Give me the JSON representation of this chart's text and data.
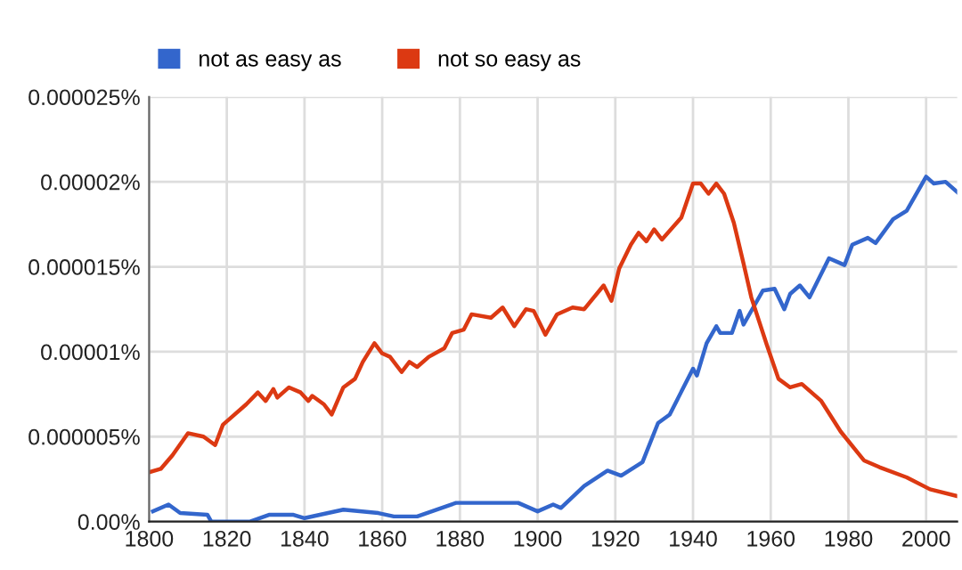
{
  "chart_data": {
    "type": "line",
    "series": [
      {
        "name": "not as easy as",
        "color": "#3366cc",
        "x": [
          1801,
          1805,
          1808,
          1815,
          1816,
          1826,
          1831,
          1837,
          1840,
          1850,
          1859,
          1863,
          1869,
          1879,
          1885,
          1891,
          1895,
          1900,
          1904,
          1906,
          1912,
          1918,
          1921.5,
          1927,
          1931,
          1934,
          1940,
          1941,
          1943.5,
          1946,
          1947,
          1950,
          1952,
          1953,
          1956,
          1958,
          1961,
          1963.5,
          1965,
          1967.5,
          1970,
          1975,
          1979,
          1981,
          1985,
          1987,
          1991.5,
          1995,
          1997,
          2000,
          2002,
          2005,
          2008
        ],
        "values": [
          6e-07,
          1e-06,
          5e-07,
          4e-07,
          0,
          0,
          4e-07,
          4e-07,
          2e-07,
          7e-07,
          5e-07,
          3e-07,
          3e-07,
          1.1e-06,
          1.1e-06,
          1.1e-06,
          1.1e-06,
          6e-07,
          1e-06,
          8e-07,
          2.1e-06,
          3e-06,
          2.7e-06,
          3.5e-06,
          5.8e-06,
          6.3e-06,
          9e-06,
          8.6e-06,
          1.05e-05,
          1.15e-05,
          1.11e-05,
          1.11e-05,
          1.24e-05,
          1.16e-05,
          1.28e-05,
          1.36e-05,
          1.37e-05,
          1.25e-05,
          1.34e-05,
          1.39e-05,
          1.32e-05,
          1.55e-05,
          1.51e-05,
          1.63e-05,
          1.67e-05,
          1.64e-05,
          1.78e-05,
          1.83e-05,
          1.91e-05,
          2.03e-05,
          1.99e-05,
          2e-05,
          1.94e-05
        ]
      },
      {
        "name": "not so easy as",
        "color": "#dc3912",
        "x": [
          1800,
          1803,
          1806,
          1810,
          1814,
          1817,
          1819,
          1825,
          1828,
          1830,
          1832,
          1833,
          1836,
          1839,
          1841,
          1842,
          1845,
          1847,
          1850,
          1853,
          1855,
          1858,
          1860,
          1862,
          1865,
          1867,
          1869,
          1872,
          1876,
          1878,
          1881,
          1883,
          1888,
          1891,
          1894,
          1897,
          1899,
          1902,
          1905,
          1909,
          1912,
          1917,
          1919,
          1921,
          1924,
          1926,
          1928,
          1930,
          1932,
          1937,
          1940,
          1942,
          1944,
          1946,
          1948,
          1950.5,
          1953,
          1955,
          1959,
          1962,
          1965,
          1968,
          1973,
          1978,
          1984,
          1988,
          1995,
          2001,
          2008
        ],
        "values": [
          2.9e-06,
          3.1e-06,
          3.9e-06,
          5.2e-06,
          5e-06,
          4.5e-06,
          5.7e-06,
          6.9e-06,
          7.6e-06,
          7.1e-06,
          7.8e-06,
          7.3e-06,
          7.9e-06,
          7.6e-06,
          7.1e-06,
          7.4e-06,
          6.9e-06,
          6.3e-06,
          7.9e-06,
          8.4e-06,
          9.4e-06,
          1.05e-05,
          9.9e-06,
          9.7e-06,
          8.8e-06,
          9.4e-06,
          9.1e-06,
          9.7e-06,
          1.02e-05,
          1.11e-05,
          1.13e-05,
          1.22e-05,
          1.2e-05,
          1.26e-05,
          1.15e-05,
          1.25e-05,
          1.24e-05,
          1.1e-05,
          1.22e-05,
          1.26e-05,
          1.25e-05,
          1.39e-05,
          1.3e-05,
          1.49e-05,
          1.63e-05,
          1.7e-05,
          1.65e-05,
          1.72e-05,
          1.66e-05,
          1.79e-05,
          1.99e-05,
          1.99e-05,
          1.93e-05,
          1.99e-05,
          1.93e-05,
          1.76e-05,
          1.52e-05,
          1.32e-05,
          1.04e-05,
          8.4e-06,
          7.9e-06,
          8.1e-06,
          7.1e-06,
          5.3e-06,
          3.6e-06,
          3.2e-06,
          2.6e-06,
          1.9e-06,
          1.5e-06
        ]
      }
    ],
    "xlim": [
      1800,
      2008
    ],
    "xticks": [
      1800,
      1820,
      1840,
      1860,
      1880,
      1900,
      1920,
      1940,
      1960,
      1980,
      2000
    ],
    "ylim": [
      0,
      2.5e-05
    ],
    "yticks": [
      {
        "value": 0,
        "label": "0.00%"
      },
      {
        "value": 5e-06,
        "label": "0.000005%"
      },
      {
        "value": 1e-05,
        "label": "0.00001%"
      },
      {
        "value": 1.5e-05,
        "label": "0.000015%"
      },
      {
        "value": 2e-05,
        "label": "0.00002%"
      },
      {
        "value": 2.5e-05,
        "label": "0.000025%"
      }
    ],
    "grid": true,
    "legend": "top left",
    "marker": "none",
    "line_style": "solid"
  }
}
